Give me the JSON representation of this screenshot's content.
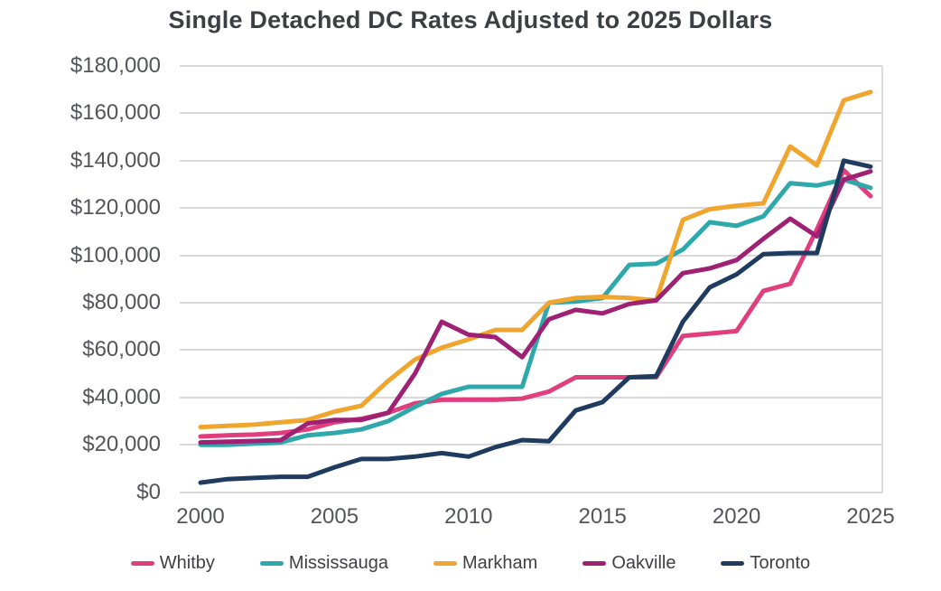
{
  "chart_data": {
    "type": "line",
    "title": "Single Detached DC Rates Adjusted to 2025 Dollars",
    "xlabel": "",
    "ylabel": "",
    "xlim": [
      2000,
      2025
    ],
    "ylim": [
      0,
      180000
    ],
    "grid": "horizontal",
    "legend_position": "bottom",
    "x": [
      2000,
      2001,
      2002,
      2003,
      2004,
      2005,
      2006,
      2007,
      2008,
      2009,
      2010,
      2011,
      2012,
      2013,
      2014,
      2015,
      2016,
      2017,
      2018,
      2019,
      2020,
      2021,
      2022,
      2023,
      2024,
      2025
    ],
    "x_tick_values": [
      2000,
      2005,
      2010,
      2015,
      2020,
      2025
    ],
    "x_tick_labels": [
      "2000",
      "2005",
      "2010",
      "2015",
      "2020",
      "2025"
    ],
    "y_tick_values": [
      0,
      20000,
      40000,
      60000,
      80000,
      100000,
      120000,
      140000,
      160000,
      180000
    ],
    "y_tick_labels": [
      "$0",
      "$20,000",
      "$40,000",
      "$60,000",
      "$80,000",
      "$100,000",
      "$120,000",
      "$140,000",
      "$160,000",
      "$180,000"
    ],
    "series": [
      {
        "name": "Whitby",
        "color": "#E13E7E",
        "values": [
          23500,
          24000,
          24300,
          25000,
          26500,
          29500,
          31000,
          33500,
          37500,
          39000,
          39000,
          39000,
          39500,
          42500,
          48500,
          48500,
          48500,
          48500,
          66000,
          67000,
          68000,
          85000,
          88000,
          111000,
          136000,
          125000
        ]
      },
      {
        "name": "Mississauga",
        "color": "#2FA8AC",
        "values": [
          20000,
          20000,
          20500,
          21000,
          24000,
          25000,
          26500,
          30000,
          36000,
          41500,
          44500,
          44500,
          44500,
          80000,
          80500,
          82000,
          96000,
          96500,
          102500,
          114000,
          112500,
          116500,
          130500,
          129500,
          132000,
          128500
        ]
      },
      {
        "name": "Markham",
        "color": "#F0A52F",
        "values": [
          27500,
          28000,
          28500,
          29500,
          30500,
          34000,
          36500,
          47000,
          56000,
          61000,
          64500,
          68500,
          68500,
          80000,
          82000,
          82500,
          82000,
          81000,
          115000,
          119500,
          121000,
          122000,
          146000,
          138000,
          165500,
          169000
        ]
      },
      {
        "name": "Oakville",
        "color": "#9E2173",
        "values": [
          21000,
          21300,
          21600,
          22000,
          29000,
          30500,
          30500,
          33500,
          50000,
          72000,
          66500,
          65500,
          57000,
          73000,
          77000,
          75500,
          79500,
          81000,
          92500,
          94500,
          98000,
          107000,
          115500,
          108000,
          132000,
          135500
        ]
      },
      {
        "name": "Toronto",
        "color": "#203B60",
        "values": [
          4000,
          5500,
          6000,
          6500,
          6500,
          10500,
          14000,
          14000,
          15000,
          16500,
          15000,
          19000,
          22000,
          21500,
          34500,
          38000,
          48500,
          49000,
          72000,
          86500,
          92000,
          100500,
          101000,
          101000,
          140000,
          137500
        ]
      }
    ]
  }
}
